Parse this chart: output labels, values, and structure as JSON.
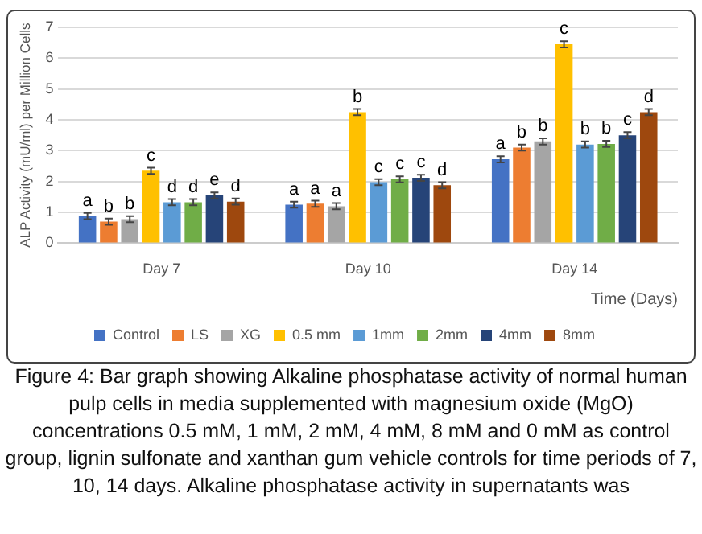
{
  "chart_data": {
    "type": "bar",
    "ylabel": "ALP Activity (mU/ml) per Million Cells",
    "xlabel": "Time (Days)",
    "categories": [
      "Day 7",
      "Day 10",
      "Day 14"
    ],
    "series": [
      {
        "name": "Control",
        "color": "#4472c4",
        "values": [
          0.88,
          1.25,
          2.72
        ],
        "errors": [
          0.1,
          0.1,
          0.1
        ],
        "value_labels": [
          "a",
          "a",
          "a"
        ]
      },
      {
        "name": "LS",
        "color": "#ed7d31",
        "values": [
          0.7,
          1.28,
          3.1
        ],
        "errors": [
          0.1,
          0.1,
          0.1
        ],
        "value_labels": [
          "b",
          "a",
          "b"
        ]
      },
      {
        "name": "XG",
        "color": "#a5a5a5",
        "values": [
          0.78,
          1.2,
          3.3
        ],
        "errors": [
          0.1,
          0.1,
          0.1
        ],
        "value_labels": [
          "b",
          "a",
          "b"
        ]
      },
      {
        "name": "0.5 mm",
        "color": "#ffc000",
        "values": [
          2.35,
          4.25,
          6.45
        ],
        "errors": [
          0.1,
          0.1,
          0.1
        ],
        "value_labels": [
          "c",
          "b",
          "c"
        ]
      },
      {
        "name": "1mm",
        "color": "#5b9bd5",
        "values": [
          1.33,
          1.98,
          3.2
        ],
        "errors": [
          0.1,
          0.1,
          0.1
        ],
        "value_labels": [
          "d",
          "c",
          "b"
        ]
      },
      {
        "name": "2mm",
        "color": "#70ad47",
        "values": [
          1.33,
          2.07,
          3.22
        ],
        "errors": [
          0.1,
          0.1,
          0.1
        ],
        "value_labels": [
          "d",
          "c",
          "b"
        ]
      },
      {
        "name": "4mm",
        "color": "#264478",
        "values": [
          1.55,
          2.12,
          3.5
        ],
        "errors": [
          0.1,
          0.1,
          0.1
        ],
        "value_labels": [
          "e",
          "c",
          "c"
        ]
      },
      {
        "name": "8mm",
        "color": "#9e480e",
        "values": [
          1.35,
          1.88,
          4.25
        ],
        "errors": [
          0.1,
          0.1,
          0.1
        ],
        "value_labels": [
          "d",
          "d",
          "d"
        ]
      }
    ],
    "ylim": [
      0,
      7
    ],
    "yticks": [
      0,
      1,
      2,
      3,
      4,
      5,
      6,
      7
    ],
    "grid": "y",
    "legend": "bottom",
    "annotations": [
      "Figure 4: Bar graph showing Alkaline phosphatase activity of normal human pulp cells in media supplemented with magnesium oxide (MgO) concentrations 0.5 mM, 1 mM, 2 mM, 4 mM, 8 mM and 0 mM as control group, lignin sulfonate and xanthan gum vehicle controls for time periods of 7, 10, 14 days. Alkaline phosphatase activity in supernatants was"
    ]
  }
}
